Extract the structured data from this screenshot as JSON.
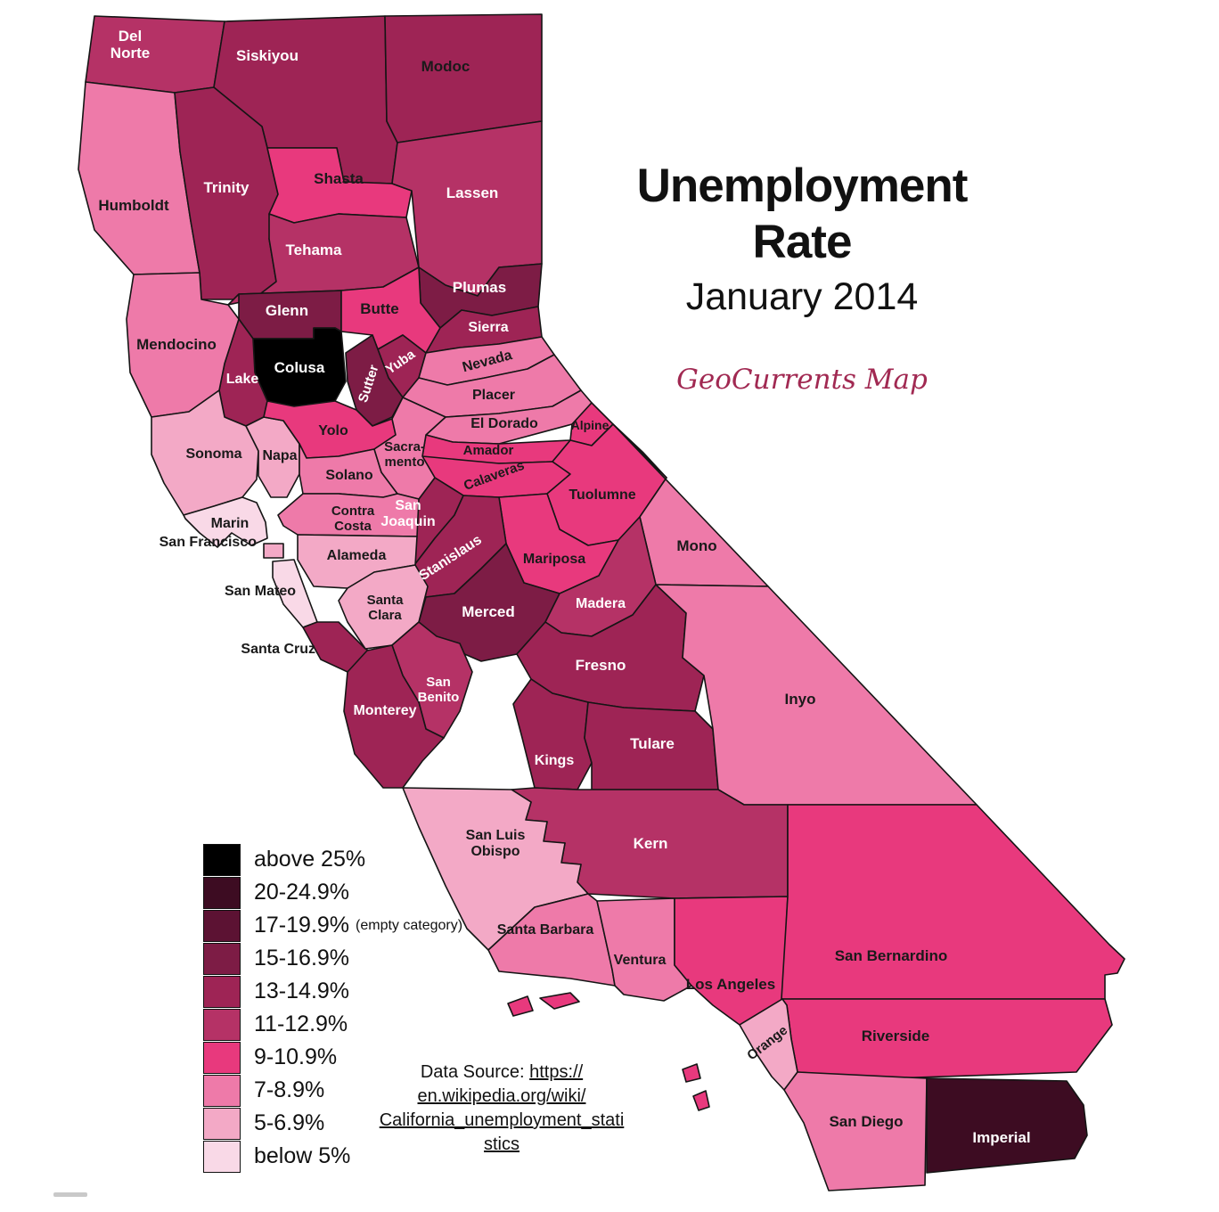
{
  "title": {
    "line1": "Unemployment",
    "line2": "Rate",
    "subtitle": "January 2014"
  },
  "attribution": "GeoCurrents Map",
  "legend": {
    "items": [
      {
        "range": "above 25%",
        "color": "#000000"
      },
      {
        "range": "20-24.9%",
        "color": "#3d0c22"
      },
      {
        "range": "17-19.9%",
        "color": "#5c1233",
        "note": "(empty category)"
      },
      {
        "range": "15-16.9%",
        "color": "#7d1c45"
      },
      {
        "range": "13-14.9%",
        "color": "#9e2455"
      },
      {
        "range": "11-12.9%",
        "color": "#b53266"
      },
      {
        "range": "9-10.9%",
        "color": "#e8397d"
      },
      {
        "range": "7-8.9%",
        "color": "#ee7aa9"
      },
      {
        "range": "5-6.9%",
        "color": "#f3a9c6"
      },
      {
        "range": "below 5%",
        "color": "#f9d9e7"
      }
    ]
  },
  "data_source": {
    "prefix": "Data Source: ",
    "link_lines": [
      "https://",
      "en.wikipedia.org/wiki/",
      "California_unemployment_stati",
      "stics"
    ]
  },
  "map": {
    "islands_rate": "9-10.9%",
    "counties": [
      {
        "id": "del_norte",
        "name": "Del Norte",
        "rate": "11-12.9%",
        "label": "light"
      },
      {
        "id": "siskiyou",
        "name": "Siskiyou",
        "rate": "13-14.9%",
        "label": "light"
      },
      {
        "id": "modoc",
        "name": "Modoc",
        "rate": "13-14.9%",
        "label": "dark"
      },
      {
        "id": "humboldt",
        "name": "Humboldt",
        "rate": "7-8.9%",
        "label": "dark"
      },
      {
        "id": "trinity",
        "name": "Trinity",
        "rate": "13-14.9%",
        "label": "light"
      },
      {
        "id": "shasta",
        "name": "Shasta",
        "rate": "9-10.9%",
        "label": "dark"
      },
      {
        "id": "lassen",
        "name": "Lassen",
        "rate": "11-12.9%",
        "label": "light"
      },
      {
        "id": "tehama",
        "name": "Tehama",
        "rate": "11-12.9%",
        "label": "light"
      },
      {
        "id": "plumas",
        "name": "Plumas",
        "rate": "15-16.9%",
        "label": "light"
      },
      {
        "id": "glenn",
        "name": "Glenn",
        "rate": "15-16.9%",
        "label": "light"
      },
      {
        "id": "butte",
        "name": "Butte",
        "rate": "9-10.9%",
        "label": "dark"
      },
      {
        "id": "colusa",
        "name": "Colusa",
        "rate": "above 25%",
        "label": "light"
      },
      {
        "id": "lake",
        "name": "Lake",
        "rate": "13-14.9%",
        "label": "light"
      },
      {
        "id": "mendocino",
        "name": "Mendocino",
        "rate": "7-8.9%",
        "label": "dark"
      },
      {
        "id": "yuba",
        "name": "Yuba",
        "rate": "13-14.9%",
        "label": "light"
      },
      {
        "id": "sutter",
        "name": "Sutter",
        "rate": "15-16.9%",
        "label": "light"
      },
      {
        "id": "sierra",
        "name": "Sierra",
        "rate": "13-14.9%",
        "label": "light"
      },
      {
        "id": "nevada",
        "name": "Nevada",
        "rate": "7-8.9%",
        "label": "dark"
      },
      {
        "id": "placer",
        "name": "Placer",
        "rate": "7-8.9%",
        "label": "dark"
      },
      {
        "id": "el_dorado",
        "name": "El Dorado",
        "rate": "7-8.9%",
        "label": "dark"
      },
      {
        "id": "alpine",
        "name": "Alpine",
        "rate": "9-10.9%",
        "label": "dark"
      },
      {
        "id": "amador",
        "name": "Amador",
        "rate": "9-10.9%",
        "label": "dark"
      },
      {
        "id": "calaveras",
        "name": "Calaveras",
        "rate": "9-10.9%",
        "label": "dark"
      },
      {
        "id": "tuolumne",
        "name": "Tuolumne",
        "rate": "9-10.9%",
        "label": "dark"
      },
      {
        "id": "mono",
        "name": "Mono",
        "rate": "7-8.9%",
        "label": "dark"
      },
      {
        "id": "mariposa",
        "name": "Mariposa",
        "rate": "9-10.9%",
        "label": "dark"
      },
      {
        "id": "san_joaquin",
        "name": "San Joaquin",
        "rate": "13-14.9%",
        "label": "light"
      },
      {
        "id": "stanislaus",
        "name": "Stanislaus",
        "rate": "13-14.9%",
        "label": "light"
      },
      {
        "id": "merced",
        "name": "Merced",
        "rate": "15-16.9%",
        "label": "light"
      },
      {
        "id": "madera",
        "name": "Madera",
        "rate": "11-12.9%",
        "label": "light"
      },
      {
        "id": "fresno",
        "name": "Fresno",
        "rate": "13-14.9%",
        "label": "light"
      },
      {
        "id": "kings",
        "name": "Kings",
        "rate": "13-14.9%",
        "label": "light"
      },
      {
        "id": "tulare",
        "name": "Tulare",
        "rate": "13-14.9%",
        "label": "light"
      },
      {
        "id": "inyo",
        "name": "Inyo",
        "rate": "7-8.9%",
        "label": "dark"
      },
      {
        "id": "kern",
        "name": "Kern",
        "rate": "11-12.9%",
        "label": "light"
      },
      {
        "id": "san_luis_obispo",
        "name": "San Luis Obispo",
        "rate": "5-6.9%",
        "label": "dark"
      },
      {
        "id": "santa_barbara",
        "name": "Santa Barbara",
        "rate": "7-8.9%",
        "label": "dark"
      },
      {
        "id": "ventura",
        "name": "Ventura",
        "rate": "7-8.9%",
        "label": "dark"
      },
      {
        "id": "los_angeles",
        "name": "Los Angeles",
        "rate": "9-10.9%",
        "label": "dark"
      },
      {
        "id": "san_bernardino",
        "name": "San Bernardino",
        "rate": "9-10.9%",
        "label": "dark"
      },
      {
        "id": "riverside",
        "name": "Riverside",
        "rate": "9-10.9%",
        "label": "dark"
      },
      {
        "id": "orange",
        "name": "Orange",
        "rate": "5-6.9%",
        "label": "dark"
      },
      {
        "id": "san_diego",
        "name": "San Diego",
        "rate": "7-8.9%",
        "label": "dark"
      },
      {
        "id": "imperial",
        "name": "Imperial",
        "rate": "20-24.9%",
        "label": "light"
      },
      {
        "id": "sonoma",
        "name": "Sonoma",
        "rate": "5-6.9%",
        "label": "dark"
      },
      {
        "id": "napa",
        "name": "Napa",
        "rate": "5-6.9%",
        "label": "dark"
      },
      {
        "id": "yolo",
        "name": "Yolo",
        "rate": "9-10.9%",
        "label": "dark"
      },
      {
        "id": "solano",
        "name": "Solano",
        "rate": "7-8.9%",
        "label": "dark"
      },
      {
        "id": "sacramento",
        "name": "Sacramento",
        "rate": "7-8.9%",
        "label": "dark"
      },
      {
        "id": "marin",
        "name": "Marin",
        "rate": "below 5%",
        "label": "dark"
      },
      {
        "id": "san_francisco",
        "name": "San Francisco",
        "rate": "5-6.9%",
        "label": "dark"
      },
      {
        "id": "san_mateo",
        "name": "San Mateo",
        "rate": "below 5%",
        "label": "dark"
      },
      {
        "id": "contra_costa",
        "name": "Contra Costa",
        "rate": "7-8.9%",
        "label": "dark"
      },
      {
        "id": "alameda",
        "name": "Alameda",
        "rate": "5-6.9%",
        "label": "dark"
      },
      {
        "id": "santa_clara",
        "name": "Santa Clara",
        "rate": "5-6.9%",
        "label": "dark"
      },
      {
        "id": "santa_cruz",
        "name": "Santa Cruz",
        "rate": "13-14.9%",
        "label": "dark"
      },
      {
        "id": "san_benito",
        "name": "San Benito",
        "rate": "11-12.9%",
        "label": "light"
      },
      {
        "id": "monterey",
        "name": "Monterey",
        "rate": "13-14.9%",
        "label": "light"
      }
    ]
  }
}
